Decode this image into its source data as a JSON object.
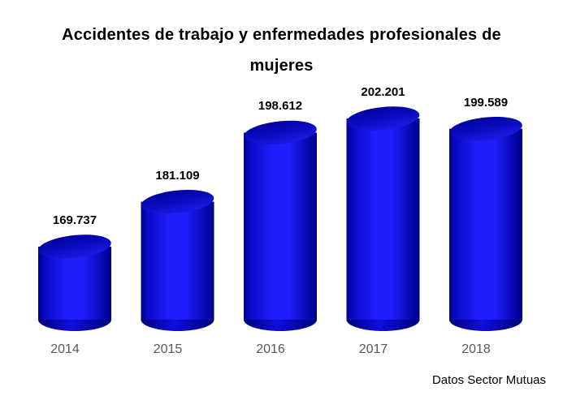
{
  "chart_data": {
    "type": "bar",
    "bar_shape": "3d-cylinder",
    "title": "Accidentes de trabajo y enfermedades profesionales de mujeres",
    "source": "Datos Sector Mutuas",
    "categories": [
      "2014",
      "2015",
      "2016",
      "2017",
      "2018"
    ],
    "values": [
      169737,
      181109,
      198612,
      202201,
      199589
    ],
    "value_labels": [
      "169.737",
      "181.109",
      "198.612",
      "202.201",
      "199.589"
    ],
    "legend": "none",
    "grid": "off",
    "value_axis_visible": false,
    "colors": {
      "background": "#FFFFFF",
      "bar_body_bright": "#1E1EFB",
      "bar_edge_dark": "#00008B",
      "bar_bottom_dark": "#000078",
      "bar_top_back_dark": "#000096",
      "bar_top_mid": "#0A0ABE",
      "bar_top_front": "#1818DE",
      "title_text": "#000000",
      "value_label_text": "#000000",
      "axis_label_text": "#595959",
      "source_text": "#000000"
    }
  }
}
